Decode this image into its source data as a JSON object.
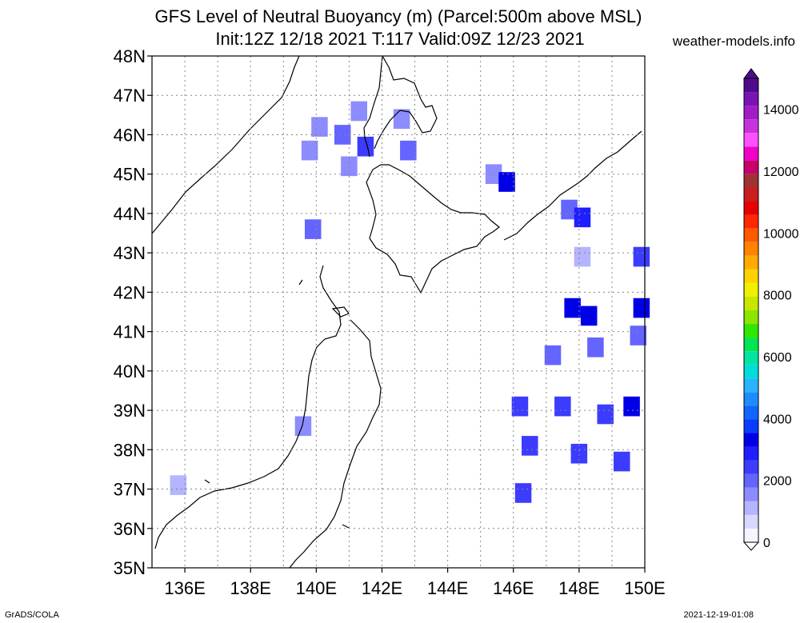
{
  "title_line1": "GFS Level of Neutral Buoyancy (m) (Parcel:500m above MSL)",
  "title_line2": "Init:12Z 12/18 2021 T:117 Valid:09Z 12/23 2021",
  "site": "weather-models.info",
  "footer_left": "GrADS/COLA",
  "footer_right": "2021-12-19-01:08",
  "lat_labels": [
    "48N",
    "47N",
    "46N",
    "45N",
    "44N",
    "43N",
    "42N",
    "41N",
    "40N",
    "39N",
    "38N",
    "37N",
    "36N",
    "35N"
  ],
  "lon_labels": [
    "136E",
    "138E",
    "140E",
    "142E",
    "144E",
    "146E",
    "148E",
    "150E"
  ],
  "colorbar_labels": [
    "14000",
    "12000",
    "10000",
    "8000",
    "6000",
    "4000",
    "2000",
    "0"
  ],
  "colorbar_colors": [
    "#f5f5ff",
    "#d8d8ff",
    "#b4b4ff",
    "#8c8cff",
    "#6464ff",
    "#3c3cff",
    "#1e1eff",
    "#0000e6",
    "#0a3cff",
    "#1464ff",
    "#1e8cff",
    "#28b4ff",
    "#00dcdc",
    "#00e6a0",
    "#00e650",
    "#32e600",
    "#8ce600",
    "#c8e600",
    "#f0f000",
    "#ffd200",
    "#ffaa00",
    "#ff8200",
    "#ff5a00",
    "#ff2800",
    "#e60000",
    "#c81e1e",
    "#a03232",
    "#c8006e",
    "#f000c8",
    "#ff50ff",
    "#c832dc",
    "#a01ec8",
    "#7814b4",
    "#500a8c"
  ],
  "chart_data": {
    "type": "heatmap",
    "title": "GFS Level of Neutral Buoyancy (m) (Parcel:500m above MSL)",
    "units": "m",
    "lon_range": [
      135,
      150
    ],
    "lat_range": [
      35,
      48
    ],
    "color_scale_range": [
      0,
      15000
    ],
    "grid": true,
    "legend": "right (vertical colorbar)",
    "cells": [
      {
        "lon": 141.3,
        "lat": 46.6,
        "value": 1500
      },
      {
        "lon": 140.1,
        "lat": 46.2,
        "value": 1600
      },
      {
        "lon": 140.8,
        "lat": 46.0,
        "value": 2000
      },
      {
        "lon": 141.5,
        "lat": 45.7,
        "value": 2300
      },
      {
        "lon": 139.8,
        "lat": 45.6,
        "value": 1500
      },
      {
        "lon": 142.8,
        "lat": 45.6,
        "value": 2000
      },
      {
        "lon": 141.0,
        "lat": 45.2,
        "value": 1500
      },
      {
        "lon": 142.6,
        "lat": 46.4,
        "value": 1500
      },
      {
        "lon": 145.4,
        "lat": 45.0,
        "value": 1500
      },
      {
        "lon": 145.8,
        "lat": 44.8,
        "value": 3200
      },
      {
        "lon": 139.9,
        "lat": 43.6,
        "value": 1800
      },
      {
        "lon": 147.7,
        "lat": 44.1,
        "value": 2200
      },
      {
        "lon": 148.1,
        "lat": 43.9,
        "value": 3000
      },
      {
        "lon": 148.1,
        "lat": 42.9,
        "value": 1300
      },
      {
        "lon": 149.9,
        "lat": 42.9,
        "value": 2300
      },
      {
        "lon": 147.8,
        "lat": 41.6,
        "value": 3200
      },
      {
        "lon": 148.3,
        "lat": 41.4,
        "value": 3300
      },
      {
        "lon": 149.9,
        "lat": 41.6,
        "value": 3200
      },
      {
        "lon": 148.5,
        "lat": 40.6,
        "value": 2200
      },
      {
        "lon": 149.8,
        "lat": 40.9,
        "value": 2200
      },
      {
        "lon": 147.2,
        "lat": 40.4,
        "value": 2000
      },
      {
        "lon": 146.2,
        "lat": 39.1,
        "value": 2300
      },
      {
        "lon": 147.5,
        "lat": 39.1,
        "value": 2400
      },
      {
        "lon": 148.8,
        "lat": 38.9,
        "value": 2400
      },
      {
        "lon": 149.6,
        "lat": 39.1,
        "value": 3200
      },
      {
        "lon": 139.6,
        "lat": 38.6,
        "value": 1500
      },
      {
        "lon": 146.5,
        "lat": 38.1,
        "value": 2400
      },
      {
        "lon": 148.0,
        "lat": 37.9,
        "value": 2500
      },
      {
        "lon": 149.3,
        "lat": 37.7,
        "value": 2600
      },
      {
        "lon": 146.3,
        "lat": 36.9,
        "value": 2300
      },
      {
        "lon": 135.8,
        "lat": 37.1,
        "value": 1000
      }
    ]
  }
}
